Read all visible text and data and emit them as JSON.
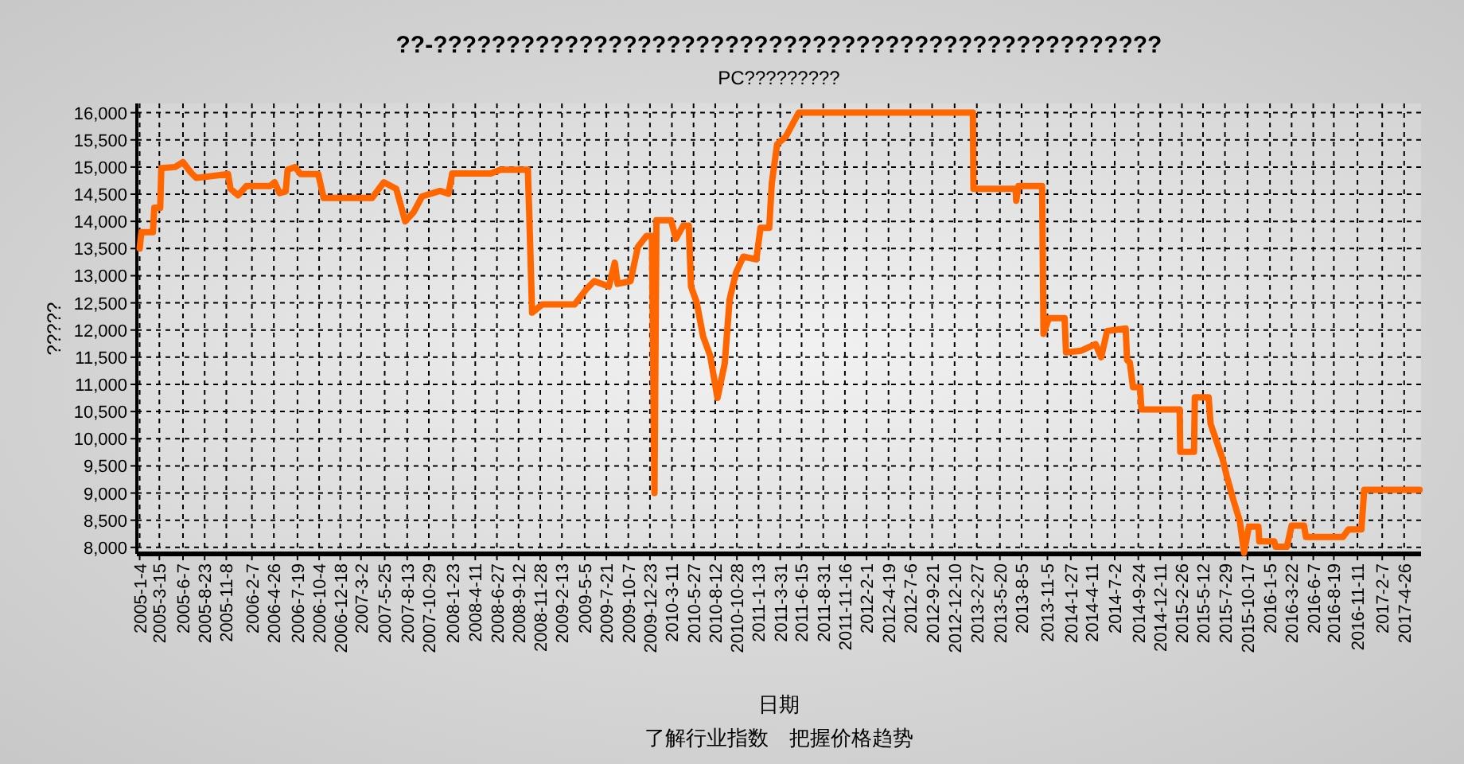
{
  "chart_data": {
    "type": "line",
    "title": "??-??????????????????????????????????????????????????",
    "subtitle": "PC?????????",
    "xlabel": "日期",
    "ylabel": "?????",
    "annotations": [
      "了解行业指数　把握价格趋势"
    ],
    "series": [
      {
        "color": "#ff6600",
        "x": [
          "2005-01-04",
          "2005-01-10",
          "2005-02-20",
          "2005-02-25",
          "2005-03-18",
          "2005-03-22",
          "2005-05-10",
          "2005-06-07",
          "2005-07-05",
          "2005-07-24",
          "2005-11-14",
          "2005-11-23",
          "2005-12-20",
          "2006-01-18",
          "2006-04-12",
          "2006-04-29",
          "2006-05-16",
          "2006-06-07",
          "2006-06-14",
          "2006-07-10",
          "2006-07-30",
          "2006-10-01",
          "2006-10-20",
          "2007-04-10",
          "2007-05-22",
          "2007-07-05",
          "2007-08-06",
          "2007-09-05",
          "2007-10-05",
          "2007-12-08",
          "2008-01-07",
          "2008-01-20",
          "2008-06-05",
          "2008-07-10",
          "2008-10-15",
          "2008-10-20",
          "2008-10-30",
          "2008-12-05",
          "2009-03-30",
          "2009-05-12",
          "2009-06-08",
          "2009-07-30",
          "2009-08-20",
          "2009-08-30",
          "2009-10-15",
          "2009-11-10",
          "2009-12-10",
          "2009-12-30",
          "2010-01-08",
          "2010-01-15",
          "2010-03-08",
          "2010-03-25",
          "2010-04-20",
          "2010-05-10",
          "2010-05-18",
          "2010-06-07",
          "2010-06-30",
          "2010-07-25",
          "2010-08-20",
          "2010-09-15",
          "2010-10-02",
          "2010-10-25",
          "2010-11-20",
          "2011-01-05",
          "2011-01-20",
          "2011-02-20",
          "2011-03-01",
          "2011-03-20",
          "2011-04-20",
          "2011-05-20",
          "2011-06-05",
          "2013-02-13",
          "2013-02-15",
          "2013-07-15",
          "2013-07-17",
          "2013-07-25",
          "2013-10-17",
          "2013-10-22",
          "2013-11-10",
          "2014-01-05",
          "2014-01-10",
          "2014-03-05",
          "2014-04-25",
          "2014-05-15",
          "2014-06-05",
          "2014-08-10",
          "2014-08-15",
          "2014-08-25",
          "2014-09-05",
          "2014-09-30",
          "2014-10-05",
          "2015-02-18",
          "2015-02-20",
          "2015-04-10",
          "2015-04-13",
          "2015-06-01",
          "2015-06-08",
          "2015-07-20",
          "2015-08-05",
          "2015-08-28",
          "2015-09-20",
          "2015-10-05",
          "2015-10-15",
          "2015-10-22",
          "2015-11-25",
          "2015-11-28",
          "2016-01-20",
          "2016-01-25",
          "2016-03-05",
          "2016-03-22",
          "2016-05-05",
          "2016-05-12",
          "2016-09-20",
          "2016-10-10",
          "2016-11-25",
          "2016-12-05",
          "2017-06-20"
        ],
        "values": [
          13500,
          13800,
          13800,
          14250,
          14250,
          14980,
          15000,
          15090,
          14900,
          14800,
          14870,
          14600,
          14480,
          14650,
          14650,
          14720,
          14520,
          14550,
          14950,
          15000,
          14870,
          14870,
          14430,
          14430,
          14720,
          14600,
          14000,
          14170,
          14460,
          14560,
          14510,
          14880,
          14880,
          14950,
          14950,
          14120,
          12320,
          12470,
          12470,
          12760,
          12900,
          12800,
          13240,
          12850,
          12900,
          13530,
          13730,
          13730,
          9000,
          14020,
          14020,
          13680,
          13920,
          13920,
          12800,
          12510,
          11880,
          11530,
          10750,
          11390,
          12560,
          13060,
          13350,
          13300,
          13880,
          13880,
          14700,
          15420,
          15560,
          15850,
          16000,
          16000,
          14600,
          14600,
          14380,
          14650,
          14650,
          11930,
          12220,
          12220,
          11590,
          11620,
          11740,
          11500,
          11980,
          12030,
          11450,
          11400,
          10950,
          10950,
          10540,
          10540,
          9760,
          9760,
          10760,
          10760,
          10270,
          9640,
          9300,
          8870,
          8480,
          7900,
          8190,
          8380,
          8380,
          8110,
          8110,
          8010,
          8010,
          8400,
          8400,
          8190,
          8190,
          8330,
          8330,
          9060,
          9060
        ]
      }
    ],
    "xlim": [
      "2004-12-25",
      "2017-06-25"
    ],
    "xticks": [
      {
        "value": "2005-01-04",
        "label": "2005-1-4"
      },
      {
        "value": "2005-03-15",
        "label": "2005-3-15"
      },
      {
        "value": "2005-06-07",
        "label": "2005-6-7"
      },
      {
        "value": "2005-08-23",
        "label": "2005-8-23"
      },
      {
        "value": "2005-11-08",
        "label": "2005-11-8"
      },
      {
        "value": "2006-02-07",
        "label": "2006-2-7"
      },
      {
        "value": "2006-04-26",
        "label": "2006-4-26"
      },
      {
        "value": "2006-07-19",
        "label": "2006-7-19"
      },
      {
        "value": "2006-10-04",
        "label": "2006-10-4"
      },
      {
        "value": "2006-12-18",
        "label": "2006-12-18"
      },
      {
        "value": "2007-03-02",
        "label": "2007-3-2"
      },
      {
        "value": "2007-05-25",
        "label": "2007-5-25"
      },
      {
        "value": "2007-08-13",
        "label": "2007-8-13"
      },
      {
        "value": "2007-10-29",
        "label": "2007-10-29"
      },
      {
        "value": "2008-01-23",
        "label": "2008-1-23"
      },
      {
        "value": "2008-04-11",
        "label": "2008-4-11"
      },
      {
        "value": "2008-06-27",
        "label": "2008-6-27"
      },
      {
        "value": "2008-09-12",
        "label": "2008-9-12"
      },
      {
        "value": "2008-11-28",
        "label": "2008-11-28"
      },
      {
        "value": "2009-02-13",
        "label": "2009-2-13"
      },
      {
        "value": "2009-05-05",
        "label": "2009-5-5"
      },
      {
        "value": "2009-07-21",
        "label": "2009-7-21"
      },
      {
        "value": "2009-10-07",
        "label": "2009-10-7"
      },
      {
        "value": "2009-12-23",
        "label": "2009-12-23"
      },
      {
        "value": "2010-03-11",
        "label": "2010-3-11"
      },
      {
        "value": "2010-05-27",
        "label": "2010-5-27"
      },
      {
        "value": "2010-08-12",
        "label": "2010-8-12"
      },
      {
        "value": "2010-10-28",
        "label": "2010-10-28"
      },
      {
        "value": "2011-01-13",
        "label": "2011-1-13"
      },
      {
        "value": "2011-03-31",
        "label": "2011-3-31"
      },
      {
        "value": "2011-06-15",
        "label": "2011-6-15"
      },
      {
        "value": "2011-08-31",
        "label": "2011-8-31"
      },
      {
        "value": "2011-11-16",
        "label": "2011-11-16"
      },
      {
        "value": "2012-02-01",
        "label": "2012-2-1"
      },
      {
        "value": "2012-04-19",
        "label": "2012-4-19"
      },
      {
        "value": "2012-07-06",
        "label": "2012-7-6"
      },
      {
        "value": "2012-09-21",
        "label": "2012-9-21"
      },
      {
        "value": "2012-12-10",
        "label": "2012-12-10"
      },
      {
        "value": "2013-02-27",
        "label": "2013-2-27"
      },
      {
        "value": "2013-05-20",
        "label": "2013-5-20"
      },
      {
        "value": "2013-08-05",
        "label": "2013-8-5"
      },
      {
        "value": "2013-11-05",
        "label": "2013-11-5"
      },
      {
        "value": "2014-01-27",
        "label": "2014-1-27"
      },
      {
        "value": "2014-04-11",
        "label": "2014-4-11"
      },
      {
        "value": "2014-07-02",
        "label": "2014-7-2"
      },
      {
        "value": "2014-09-24",
        "label": "2014-9-24"
      },
      {
        "value": "2014-12-11",
        "label": "2014-12-11"
      },
      {
        "value": "2015-02-26",
        "label": "2015-2-26"
      },
      {
        "value": "2015-05-12",
        "label": "2015-5-12"
      },
      {
        "value": "2015-07-29",
        "label": "2015-7-29"
      },
      {
        "value": "2015-10-17",
        "label": "2015-10-17"
      },
      {
        "value": "2016-01-05",
        "label": "2016-1-5"
      },
      {
        "value": "2016-03-22",
        "label": "2016-3-22"
      },
      {
        "value": "2016-06-07",
        "label": "2016-6-7"
      },
      {
        "value": "2016-08-19",
        "label": "2016-8-19"
      },
      {
        "value": "2016-11-11",
        "label": "2016-11-11"
      },
      {
        "value": "2017-02-07",
        "label": "2017-2-7"
      },
      {
        "value": "2017-04-26",
        "label": "2017-4-26"
      }
    ],
    "ylim": [
      7880,
      16170
    ],
    "yticks": [
      {
        "value": 8000,
        "label": "8,000"
      },
      {
        "value": 8500,
        "label": "8,500"
      },
      {
        "value": 9000,
        "label": "9,000"
      },
      {
        "value": 9500,
        "label": "9,500"
      },
      {
        "value": 10000,
        "label": "10,000"
      },
      {
        "value": 10500,
        "label": "10,500"
      },
      {
        "value": 11000,
        "label": "11,000"
      },
      {
        "value": 11500,
        "label": "11,500"
      },
      {
        "value": 12000,
        "label": "12,000"
      },
      {
        "value": 12500,
        "label": "12,500"
      },
      {
        "value": 13000,
        "label": "13,000"
      },
      {
        "value": 13500,
        "label": "13,500"
      },
      {
        "value": 14000,
        "label": "14,000"
      },
      {
        "value": 14500,
        "label": "14,500"
      },
      {
        "value": 15000,
        "label": "15,000"
      },
      {
        "value": 15500,
        "label": "15,500"
      },
      {
        "value": 16000,
        "label": "16,000"
      }
    ],
    "grid": true,
    "line_style": "solid"
  }
}
